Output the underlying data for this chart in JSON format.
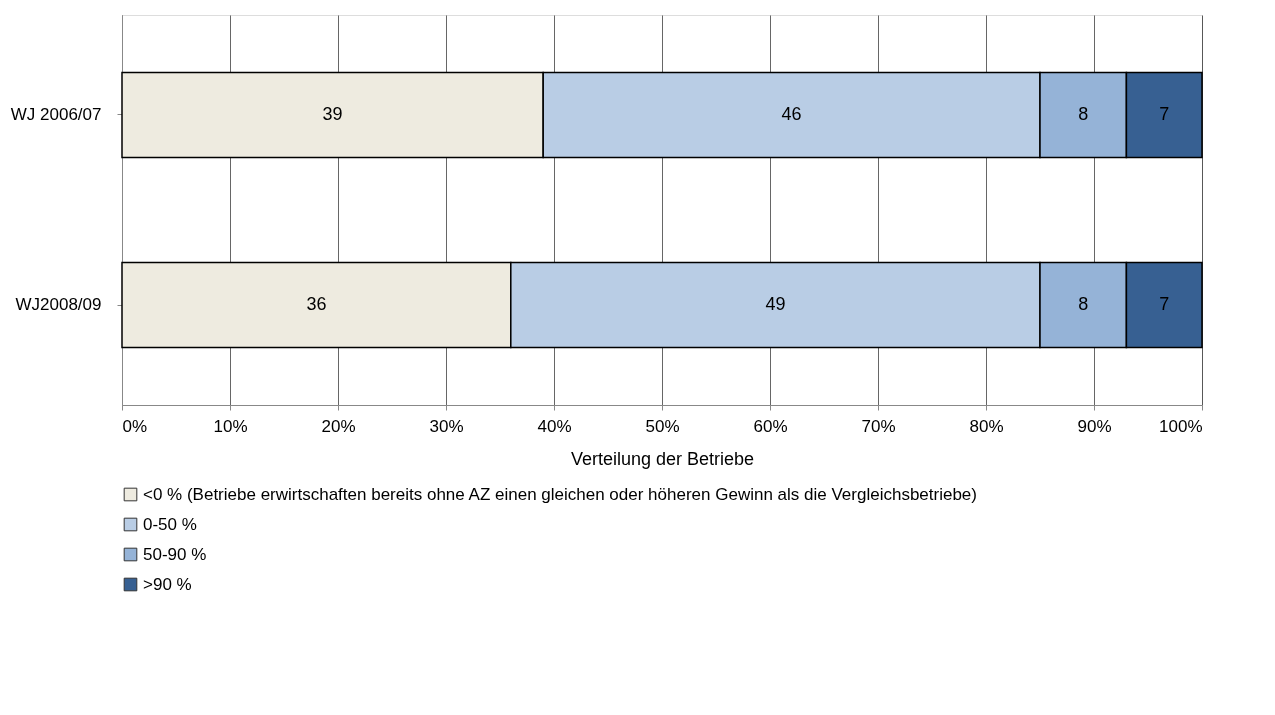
{
  "chart_data": {
    "type": "bar",
    "orientation": "horizontal",
    "stacked": true,
    "xlabel": "Verteilung der Betriebe",
    "categories": [
      "WJ 2006/07",
      "WJ2008/09"
    ],
    "series": [
      {
        "name": "<0 % (Betriebe erwirtschaften bereits ohne AZ einen gleichen oder höheren Gewinn als die Vergleichsbetriebe)",
        "color": "#eeebe0",
        "values": [
          39,
          36
        ]
      },
      {
        "name": "0-50 %",
        "color": "#b9cde5",
        "values": [
          46,
          49
        ]
      },
      {
        "name": "50-90 %",
        "color": "#95b3d7",
        "values": [
          8,
          8
        ]
      },
      {
        "name": ">90 %",
        "color": "#376092",
        "values": [
          7,
          7
        ]
      }
    ],
    "xlim": [
      0,
      100
    ],
    "xticks": [
      {
        "value": 0,
        "label": "0%"
      },
      {
        "value": 10,
        "label": "10%"
      },
      {
        "value": 20,
        "label": "20%"
      },
      {
        "value": 30,
        "label": "30%"
      },
      {
        "value": 40,
        "label": "40%"
      },
      {
        "value": 50,
        "label": "50%"
      },
      {
        "value": 60,
        "label": "60%"
      },
      {
        "value": 70,
        "label": "70%"
      },
      {
        "value": 80,
        "label": "80%"
      },
      {
        "value": 90,
        "label": "90%"
      },
      {
        "value": 100,
        "label": "100%"
      }
    ],
    "grid": "x",
    "legend": "bottom",
    "data_labels": true
  }
}
